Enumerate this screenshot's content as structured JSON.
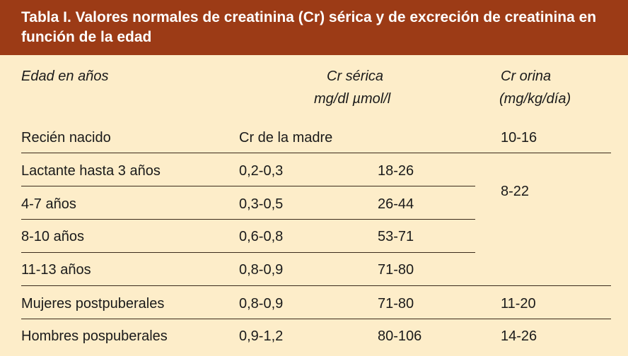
{
  "title": "Tabla I.  Valores normales de creatinina (Cr) sérica y de excreción de creatinina en función de la edad",
  "headers": {
    "age": "Edad en años",
    "serum_line1": "Cr sérica",
    "serum_line2": "mg/dl µmol/l",
    "urine_line1": "Cr orina",
    "urine_line2": "(mg/kg/día)"
  },
  "rows": [
    {
      "age": "Recién nacido",
      "mgdl": "Cr de la madre",
      "umol": "",
      "urine": "10-16"
    },
    {
      "age": "Lactante hasta 3 años",
      "mgdl": "0,2-0,3",
      "umol": "18-26",
      "urine": ""
    },
    {
      "age": "4-7 años",
      "mgdl": "0,3-0,5",
      "umol": "26-44",
      "urine": "8-22"
    },
    {
      "age": "8-10 años",
      "mgdl": "0,6-0,8",
      "umol": "53-71",
      "urine": ""
    },
    {
      "age": "11-13 años",
      "mgdl": "0,8-0,9",
      "umol": "71-80",
      "urine": ""
    },
    {
      "age": "Mujeres postpuberales",
      "mgdl": "0,8-0,9",
      "umol": "71-80",
      "urine": "11-20"
    },
    {
      "age": "Hombres pospuberales",
      "mgdl": "0,9-1,2",
      "umol": "80-106",
      "urine": "14-26"
    }
  ]
}
